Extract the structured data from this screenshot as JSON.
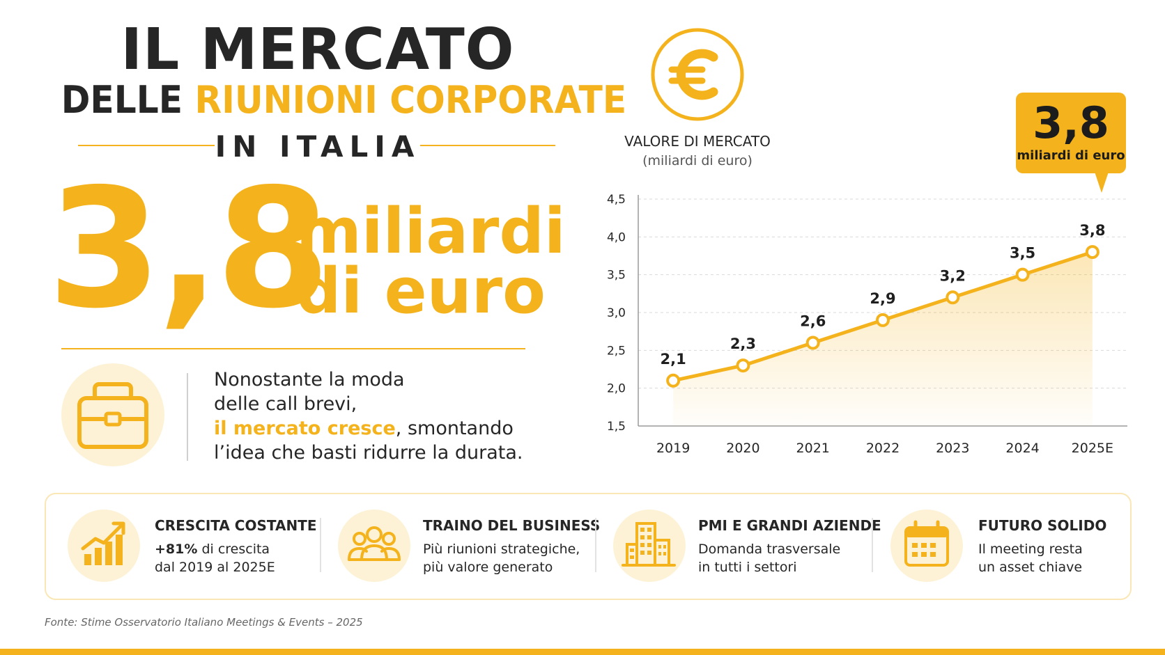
{
  "title": {
    "line1": "IL MERCATO",
    "line2_dark": "DELLE",
    "line2_accent": "RIUNIONI CORPORATE",
    "line3": "IN ITALIA"
  },
  "hero": {
    "value": "3,8",
    "unit_line1": "miliardi",
    "unit_line2": "di euro"
  },
  "quote": {
    "line1": "Nonostante la moda",
    "line2": "delle call brevi,",
    "highlight": "il mercato cresce",
    "line3_rest": ", smontando",
    "line4": "l’idea che basti ridurre la durata."
  },
  "callout": {
    "value": "3,8",
    "unit": "miliardi di euro"
  },
  "colors": {
    "accent": "#F4B31C",
    "accent_light": "#FDF2D6",
    "dark": "#262626"
  },
  "chart_data": {
    "type": "line",
    "title": "VALORE DI MERCATO",
    "subtitle": "(miliardi di euro)",
    "categories": [
      "2019",
      "2020",
      "2021",
      "2022",
      "2023",
      "2024",
      "2025E"
    ],
    "values": [
      2.1,
      2.3,
      2.6,
      2.9,
      3.2,
      3.5,
      3.8
    ],
    "data_labels": [
      "2,1",
      "2,3",
      "2,6",
      "2,9",
      "3,2",
      "3,5",
      "3,8"
    ],
    "ylim": [
      1.5,
      4.5
    ],
    "yticks": [
      1.5,
      2.0,
      2.5,
      3.0,
      3.5,
      4.0,
      4.5
    ],
    "ytick_labels": [
      "1,5",
      "2,0",
      "2,5",
      "3,0",
      "3,5",
      "4,0",
      "4,5"
    ],
    "grid": true,
    "area_fill": true,
    "xlabel": "",
    "ylabel": ""
  },
  "features": [
    {
      "icon": "growth-chart-icon",
      "title": "CRESCITA COSTANTE",
      "highlight": "+81%",
      "line1_rest": " di crescita",
      "line2": "dal 2019 al 2025E"
    },
    {
      "icon": "people-group-icon",
      "title": "TRAINO DEL BUSINESS",
      "line1": "Più riunioni strategiche,",
      "line2": "più valore generato"
    },
    {
      "icon": "buildings-icon",
      "title": "PMI E GRANDI AZIENDE",
      "line1": "Domanda trasversale",
      "line2": "in tutti i settori"
    },
    {
      "icon": "calendar-icon",
      "title": "FUTURO SOLIDO",
      "line1": "Il meeting resta",
      "line2": "un asset chiave"
    }
  ],
  "source": "Fonte: Stime Osservatorio Italiano Meetings & Events – 2025"
}
